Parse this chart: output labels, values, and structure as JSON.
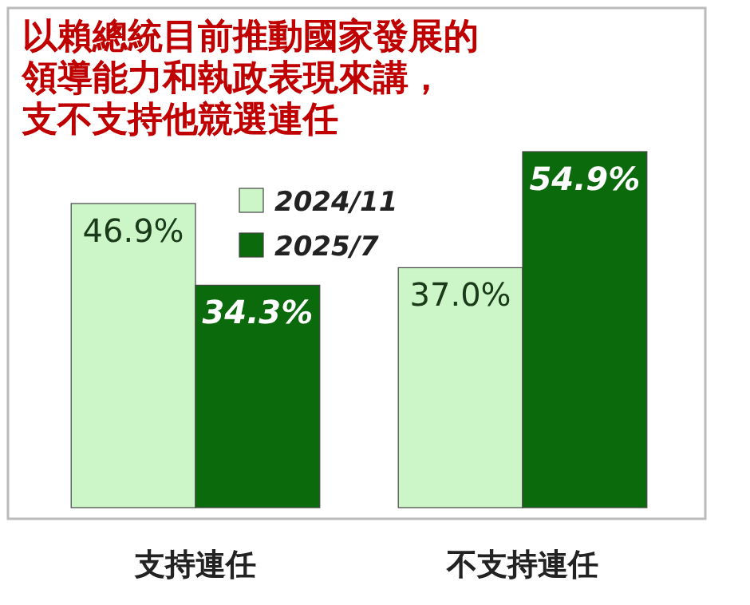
{
  "chart_data": {
    "type": "bar",
    "title": "以賴總統目前推動國家發展的領導能力和執政表現來講，支不支持他競選連任",
    "categories": [
      "支持連任",
      "不支持連任"
    ],
    "series": [
      {
        "name": "2024/11",
        "color": "#ccf5c8",
        "values": [
          46.9,
          37.0
        ],
        "value_labels": [
          "46.9%",
          "37.0%"
        ]
      },
      {
        "name": "2025/7",
        "color": "#0b6a0b",
        "values": [
          34.3,
          54.9
        ],
        "value_labels": [
          "34.3%",
          "54.9%"
        ]
      }
    ],
    "legend": "top"
  }
}
